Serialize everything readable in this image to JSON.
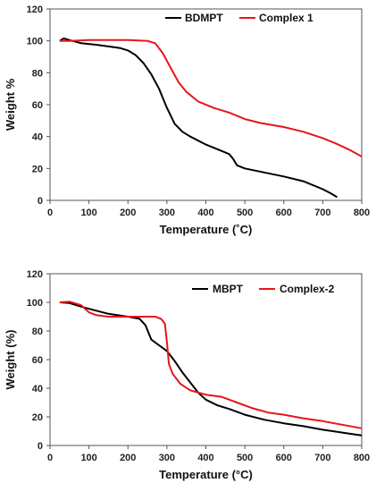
{
  "chart_data": [
    {
      "type": "line",
      "xlabel": "Temperature (˚C)",
      "ylabel": "Weight %",
      "xlim": [
        0,
        800
      ],
      "ylim": [
        0,
        120
      ],
      "xticks": [
        0,
        100,
        200,
        300,
        400,
        500,
        600,
        700,
        800
      ],
      "yticks": [
        0,
        20,
        40,
        60,
        80,
        100,
        120
      ],
      "legend_position": "top-right",
      "series": [
        {
          "name": "BDMPT",
          "color": "#000000",
          "points": [
            [
              25,
              100
            ],
            [
              35,
              101.5
            ],
            [
              50,
              100.5
            ],
            [
              80,
              98.5
            ],
            [
              120,
              97.5
            ],
            [
              150,
              96.5
            ],
            [
              180,
              95.5
            ],
            [
              200,
              94
            ],
            [
              220,
              91
            ],
            [
              240,
              86
            ],
            [
              260,
              79
            ],
            [
              280,
              70
            ],
            [
              300,
              58
            ],
            [
              320,
              48
            ],
            [
              340,
              43
            ],
            [
              360,
              40
            ],
            [
              400,
              35
            ],
            [
              440,
              31
            ],
            [
              460,
              29
            ],
            [
              470,
              26
            ],
            [
              480,
              22
            ],
            [
              500,
              20
            ],
            [
              550,
              17.5
            ],
            [
              600,
              15
            ],
            [
              650,
              12
            ],
            [
              700,
              7
            ],
            [
              720,
              4.5
            ],
            [
              737,
              2
            ]
          ]
        },
        {
          "name": "Complex 1",
          "color": "#e8151b",
          "points": [
            [
              25,
              100
            ],
            [
              50,
              100
            ],
            [
              100,
              100.5
            ],
            [
              150,
              100.5
            ],
            [
              200,
              100.5
            ],
            [
              250,
              100
            ],
            [
              270,
              98.5
            ],
            [
              290,
              92
            ],
            [
              310,
              83
            ],
            [
              330,
              74
            ],
            [
              350,
              68
            ],
            [
              380,
              62
            ],
            [
              420,
              58
            ],
            [
              460,
              55
            ],
            [
              500,
              51
            ],
            [
              540,
              48.5
            ],
            [
              600,
              46
            ],
            [
              650,
              43
            ],
            [
              700,
              39
            ],
            [
              740,
              35
            ],
            [
              770,
              31.5
            ],
            [
              800,
              27.5
            ]
          ]
        }
      ]
    },
    {
      "type": "line",
      "xlabel": "Temperature (°C)",
      "ylabel": "Weight (%)",
      "xlim": [
        0,
        800
      ],
      "ylim": [
        0,
        120
      ],
      "xticks": [
        0,
        100,
        200,
        300,
        400,
        500,
        600,
        700,
        800
      ],
      "yticks": [
        0,
        20,
        40,
        60,
        80,
        100,
        120
      ],
      "legend_position": "top-right",
      "series": [
        {
          "name": "MBPT",
          "color": "#000000",
          "points": [
            [
              25,
              100
            ],
            [
              50,
              99.5
            ],
            [
              80,
              97
            ],
            [
              100,
              95.5
            ],
            [
              150,
              92
            ],
            [
              200,
              90
            ],
            [
              230,
              88.5
            ],
            [
              245,
              84
            ],
            [
              260,
              74
            ],
            [
              280,
              70
            ],
            [
              300,
              66
            ],
            [
              320,
              59
            ],
            [
              340,
              51
            ],
            [
              360,
              44
            ],
            [
              380,
              37
            ],
            [
              400,
              32
            ],
            [
              430,
              28
            ],
            [
              460,
              25.5
            ],
            [
              500,
              21.5
            ],
            [
              550,
              18
            ],
            [
              600,
              15.5
            ],
            [
              650,
              13.5
            ],
            [
              700,
              11
            ],
            [
              750,
              9
            ],
            [
              800,
              7
            ]
          ]
        },
        {
          "name": "Complex-2",
          "color": "#e8151b",
          "points": [
            [
              25,
              100
            ],
            [
              50,
              100.5
            ],
            [
              80,
              98
            ],
            [
              100,
              93
            ],
            [
              120,
              91
            ],
            [
              150,
              90
            ],
            [
              200,
              90
            ],
            [
              250,
              90
            ],
            [
              270,
              90
            ],
            [
              285,
              88.5
            ],
            [
              295,
              85
            ],
            [
              300,
              72
            ],
            [
              305,
              57
            ],
            [
              315,
              50
            ],
            [
              335,
              43
            ],
            [
              360,
              38.5
            ],
            [
              400,
              35.5
            ],
            [
              440,
              34
            ],
            [
              480,
              30
            ],
            [
              520,
              26
            ],
            [
              560,
              23
            ],
            [
              600,
              21.5
            ],
            [
              650,
              19
            ],
            [
              700,
              17
            ],
            [
              750,
              14.5
            ],
            [
              800,
              12
            ]
          ]
        }
      ]
    }
  ]
}
